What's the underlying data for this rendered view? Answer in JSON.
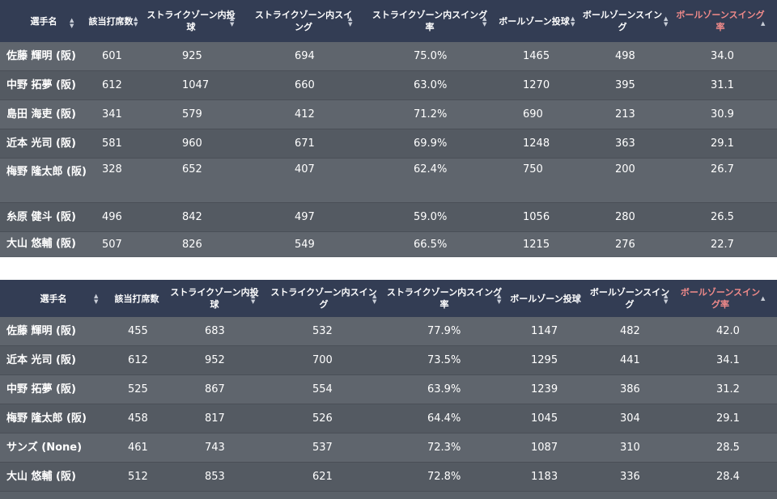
{
  "headers": {
    "player": "選手名",
    "pa": "該当打席数",
    "zone_pitches": "ストライクゾーン内投球",
    "zone_swings": "ストライクゾーン内スイング",
    "zone_swing_rate": "ストライクゾーン内スイング率",
    "ball_pitches": "ボールゾーン投球",
    "ball_swings": "ボールゾーンスイング",
    "ball_swing_rate": "ボールゾーンスイング率"
  },
  "sort_icon": "sort-arrows-icon",
  "accent_color": "#f08a8a",
  "table1": {
    "rows": [
      {
        "player": "佐藤 輝明 (阪)",
        "pa": "601",
        "zone_pitches": "925",
        "zone_swings": "694",
        "zone_swing_rate": "75.0%",
        "ball_pitches": "1465",
        "ball_swings": "498",
        "ball_swing_rate": "34.0"
      },
      {
        "player": "中野 拓夢 (阪)",
        "pa": "612",
        "zone_pitches": "1047",
        "zone_swings": "660",
        "zone_swing_rate": "63.0%",
        "ball_pitches": "1270",
        "ball_swings": "395",
        "ball_swing_rate": "31.1"
      },
      {
        "player": "島田 海吏 (阪)",
        "pa": "341",
        "zone_pitches": "579",
        "zone_swings": "412",
        "zone_swing_rate": "71.2%",
        "ball_pitches": "690",
        "ball_swings": "213",
        "ball_swing_rate": "30.9"
      },
      {
        "player": "近本 光司 (阪)",
        "pa": "581",
        "zone_pitches": "960",
        "zone_swings": "671",
        "zone_swing_rate": "69.9%",
        "ball_pitches": "1248",
        "ball_swings": "363",
        "ball_swing_rate": "29.1"
      },
      {
        "player": "梅野 隆太郎 (阪)",
        "pa": "328",
        "zone_pitches": "652",
        "zone_swings": "407",
        "zone_swing_rate": "62.4%",
        "ball_pitches": "750",
        "ball_swings": "200",
        "ball_swing_rate": "26.7"
      },
      {
        "player": "糸原 健斗 (阪)",
        "pa": "496",
        "zone_pitches": "842",
        "zone_swings": "497",
        "zone_swing_rate": "59.0%",
        "ball_pitches": "1056",
        "ball_swings": "280",
        "ball_swing_rate": "26.5"
      },
      {
        "player": "大山 悠輔 (阪)",
        "pa": "507",
        "zone_pitches": "826",
        "zone_swings": "549",
        "zone_swing_rate": "66.5%",
        "ball_pitches": "1215",
        "ball_swings": "276",
        "ball_swing_rate": "22.7"
      }
    ]
  },
  "table2": {
    "rows": [
      {
        "player": "佐藤 輝明 (阪)",
        "pa": "455",
        "zone_pitches": "683",
        "zone_swings": "532",
        "zone_swing_rate": "77.9%",
        "ball_pitches": "1147",
        "ball_swings": "482",
        "ball_swing_rate": "42.0"
      },
      {
        "player": "近本 光司 (阪)",
        "pa": "612",
        "zone_pitches": "952",
        "zone_swings": "700",
        "zone_swing_rate": "73.5%",
        "ball_pitches": "1295",
        "ball_swings": "441",
        "ball_swing_rate": "34.1"
      },
      {
        "player": "中野 拓夢 (阪)",
        "pa": "525",
        "zone_pitches": "867",
        "zone_swings": "554",
        "zone_swing_rate": "63.9%",
        "ball_pitches": "1239",
        "ball_swings": "386",
        "ball_swing_rate": "31.2"
      },
      {
        "player": "梅野 隆太郎 (阪)",
        "pa": "458",
        "zone_pitches": "817",
        "zone_swings": "526",
        "zone_swing_rate": "64.4%",
        "ball_pitches": "1045",
        "ball_swings": "304",
        "ball_swing_rate": "29.1"
      },
      {
        "player": "サンズ (None)",
        "pa": "461",
        "zone_pitches": "743",
        "zone_swings": "537",
        "zone_swing_rate": "72.3%",
        "ball_pitches": "1087",
        "ball_swings": "310",
        "ball_swing_rate": "28.5"
      },
      {
        "player": "大山 悠輔 (阪)",
        "pa": "512",
        "zone_pitches": "853",
        "zone_swings": "621",
        "zone_swing_rate": "72.8%",
        "ball_pitches": "1183",
        "ball_swings": "336",
        "ball_swing_rate": "28.4"
      }
    ]
  }
}
